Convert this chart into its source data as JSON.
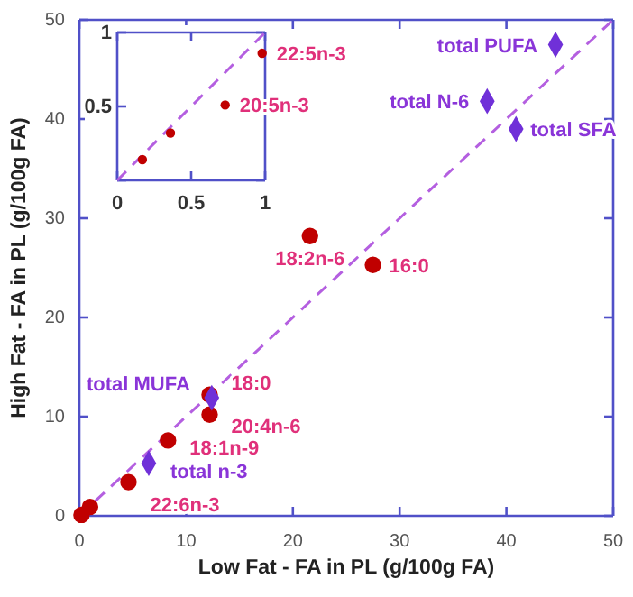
{
  "chart_data": [
    {
      "type": "scatter",
      "xlabel": "Low Fat - FA in PL (g/100g FA)",
      "ylabel": "High Fat - FA in PL (g/100g FA)",
      "xlim": [
        0,
        50
      ],
      "ylim": [
        0,
        50
      ],
      "xticks": [
        0,
        10,
        20,
        30,
        40,
        50
      ],
      "yticks": [
        0,
        10,
        20,
        30,
        40,
        50
      ],
      "grid": false,
      "series": [
        {
          "type": "line",
          "color": "#b45fe0",
          "line_style": "dashed",
          "marker": "none",
          "x": [
            0,
            50
          ],
          "values": [
            0,
            50
          ]
        },
        {
          "type": "scatter",
          "color": "#c00000",
          "marker": "circle",
          "x": [
            21.6,
            27.5,
            12.2,
            12.2,
            8.3,
            4.6,
            1.0,
            0.2
          ],
          "values": [
            28.2,
            25.3,
            12.2,
            10.2,
            7.6,
            3.4,
            0.9,
            0.1
          ],
          "value_labels": [
            "18:2n-6",
            "16:0",
            "18:0",
            "20:4n-6",
            "18:1n-9",
            "22:6n-3",
            null,
            null
          ]
        },
        {
          "type": "scatter",
          "color": "#7030d8",
          "marker": "diamond",
          "x": [
            44.6,
            38.2,
            40.9,
            12.4,
            6.5
          ],
          "values": [
            47.5,
            41.8,
            39.0,
            11.9,
            5.3
          ],
          "value_labels": [
            "total PUFA",
            "total N-6",
            "total SFA",
            "total MUFA",
            "total n-3"
          ]
        }
      ]
    },
    {
      "type": "scatter",
      "xlim": [
        0,
        1
      ],
      "ylim": [
        0,
        1
      ],
      "xticks": [
        0,
        0.5,
        1
      ],
      "yticks": [
        {
          "value": 0,
          "label": null
        },
        0.5,
        1
      ],
      "grid": false,
      "series": [
        {
          "type": "line",
          "color": "#b45fe0",
          "line_style": "dashed",
          "marker": "none",
          "x": [
            0,
            1
          ],
          "values": [
            0,
            1
          ]
        },
        {
          "type": "scatter",
          "color": "#c00000",
          "marker": "circle",
          "x": [
            0.98,
            0.73,
            0.36,
            0.17
          ],
          "values": [
            0.86,
            0.51,
            0.32,
            0.14
          ],
          "value_labels": [
            "22:5n-3",
            "20:5n-3",
            null,
            null
          ]
        }
      ]
    }
  ]
}
